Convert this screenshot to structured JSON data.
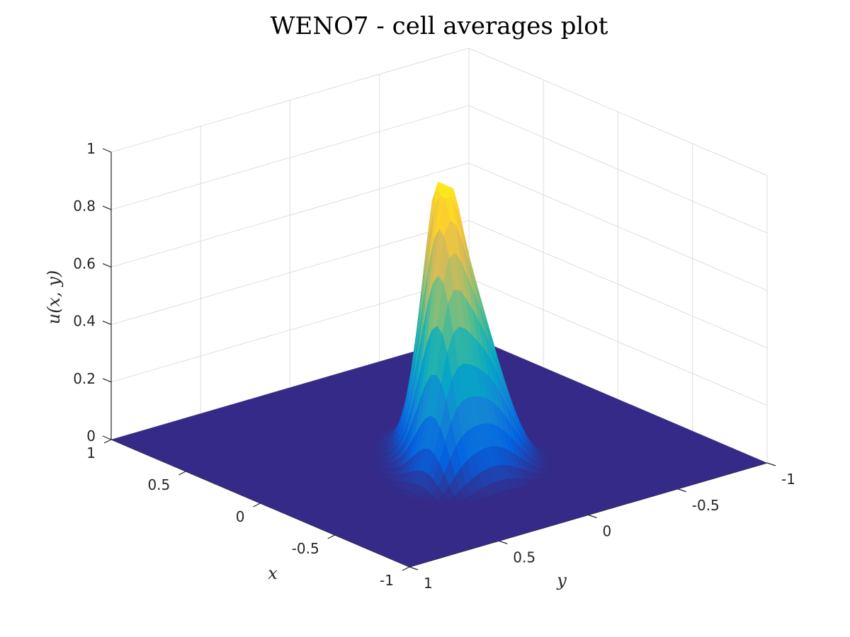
{
  "chart_data": {
    "type": "surface",
    "title": "WENO7 - cell averages plot",
    "xlabel": "x",
    "ylabel": "y",
    "zlabel": "u(x, y)",
    "xlim": [
      -1,
      1
    ],
    "ylim": [
      -1,
      1
    ],
    "zlim": [
      0,
      1
    ],
    "x_ticks": [
      "1",
      "0.5",
      "0",
      "-0.5",
      "-1"
    ],
    "y_ticks": [
      "1",
      "0.5",
      "0",
      "-0.5",
      "-1"
    ],
    "z_ticks": [
      "0",
      "0.2",
      "0.4",
      "0.6",
      "0.8",
      "1"
    ],
    "colormap": "parula",
    "colors": [
      "#352a87",
      "#0363e1",
      "#1485d4",
      "#06a7c6",
      "#38b99e",
      "#92bf73",
      "#d9ba56",
      "#fcce2e",
      "#f9fb0e"
    ],
    "grid": true,
    "surface": {
      "support_center": [
        -0.1,
        0.1
      ],
      "support_radius": 0.5,
      "peak": 0.95
    }
  }
}
